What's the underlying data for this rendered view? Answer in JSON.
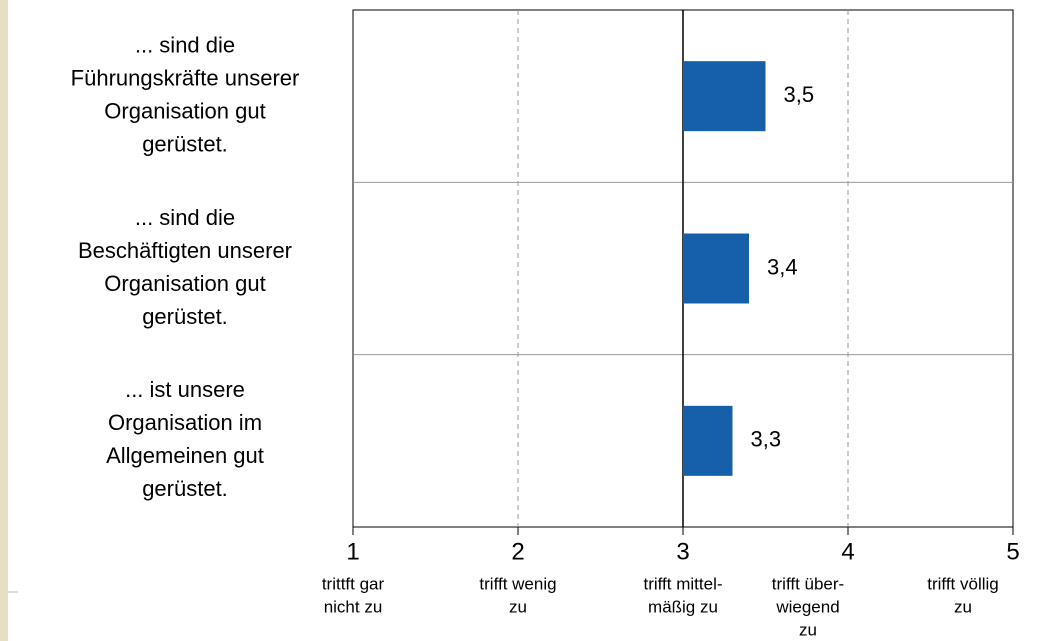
{
  "chart_data": {
    "type": "hbar",
    "categories": [
      [
        "... sind die",
        "Führungskräfte unserer",
        "Organisation gut",
        "gerüstet."
      ],
      [
        "... sind die",
        "Beschäftigten unserer",
        "Organisation gut",
        "gerüstet."
      ],
      [
        "... ist unsere",
        "Organisation im",
        "Allgemeinen gut",
        "gerüstet."
      ]
    ],
    "values": [
      3.5,
      3.4,
      3.3
    ],
    "value_labels": [
      "3,5",
      "3,4",
      "3,3"
    ],
    "color": "#1560a8",
    "xlim": [
      1,
      5
    ],
    "xticks": [
      1,
      2,
      3,
      4,
      5
    ],
    "xtick_descriptions": [
      [
        "trittft gar",
        "nicht zu"
      ],
      [
        "trifft wenig",
        "zu"
      ],
      [
        "trifft mittel-",
        "mäßig zu"
      ],
      [
        "trifft über-",
        "wiegend",
        "zu"
      ],
      [
        "trifft völlig",
        "zu"
      ]
    ],
    "x_axis_crossing": 3,
    "grid": true
  }
}
